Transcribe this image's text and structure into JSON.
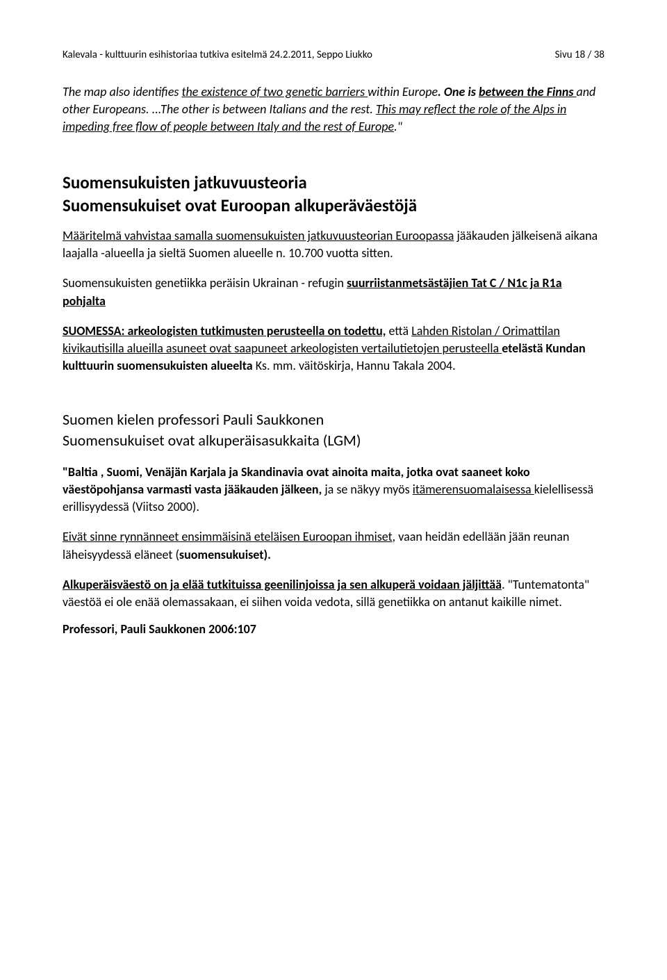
{
  "header": {
    "left": "Kalevala - kulttuurin esihistoriaa tutkiva esitelmä 24.2.2011, Seppo Liukko",
    "right": "Sivu 18 / 38"
  },
  "p1": {
    "t1": "The map also identifies ",
    "t2": "the existence of two genetic barriers ",
    "t3": "within Europe",
    "t4": ". One is ",
    "t5": "between the Finns ",
    "t6": "and other Europeans",
    "t7": ". ",
    "t8": "...The other is between Italians  and the rest",
    "t9": ". ",
    "t10": "This may reflect the role of the Alps in impeding free flow of people between Italy and the rest of Europe",
    "t11": ".\""
  },
  "h2a": {
    "l1": "Suomensukuisten jatkuvuusteoria",
    "l2": "Suomensukuiset ovat Euroopan alkuperäväestöjä"
  },
  "p2": {
    "t1": "Määritelmä vahvistaa samalla suomensukuisten jatkuvuusteorian Euroopassa",
    "t2": " jääkauden jälkeisenä aikana laajalla -alueella ja sieltä Suomen alueelle n. 10.700 vuotta sitten."
  },
  "p3": {
    "t1": "Suomensukuisten genetiikka peräisin Ukrainan - refugin ",
    "t2": "suurriistanmetsästäjien Tat C / N1c ja R1a  pohjalta"
  },
  "p4": {
    "t1": "SUOMESSA: arkeologisten tutkimusten perusteella on todettu,",
    "t2": " että ",
    "t3": "Lahden Ristolan / Orimattilan kivikautisilla alueilla asuneet ovat saapuneet arkeologisten vertailutietojen perusteella ",
    "t4": "etelästä Kundan kulttuurin suomensukuisten alueelta",
    "t5": " Ks. mm. väitöskirja, Hannu Takala 2004."
  },
  "h3a": {
    "l1": "Suomen kielen professori Pauli Saukkonen",
    "l2": "Suomensukuiset ovat alkuperäisasukkaita (LGM)"
  },
  "p5": {
    "t1": "\"Baltia , Suomi, Venäjän Karjala ja Skandinavia ovat ainoita maita, jotka ovat saaneet koko väestöpohjansa varmasti vasta jääkauden jälkeen,",
    "t2": " ja se näkyy myös ",
    "t3": "itämerensuomalaisessa ",
    "t4": "kielellisessä erillisyydessä (Viitso 2000)."
  },
  "p6": {
    "t1": "Eivät sinne rynnänneet ensimmäisinä eteläisen Euroopan ihmiset",
    "t2": ", vaan heidän edellään jään reunan läheisyydessä eläneet (",
    "t3": "suomensukuiset).",
    "t4": ""
  },
  "p7": {
    "t1": "Alkuperäisväestö on ja elää tutkituissa geenilinjoissa ja sen alkuperä voidaan jäljittää",
    "t2": ". \"Tuntematonta\" väestöä ei ole enää olemassakaan, ei siihen voida vedota, sillä genetiikka on antanut kaikille nimet."
  },
  "p8": {
    "t1": "Professori, Pauli Saukkonen 2006:107"
  }
}
